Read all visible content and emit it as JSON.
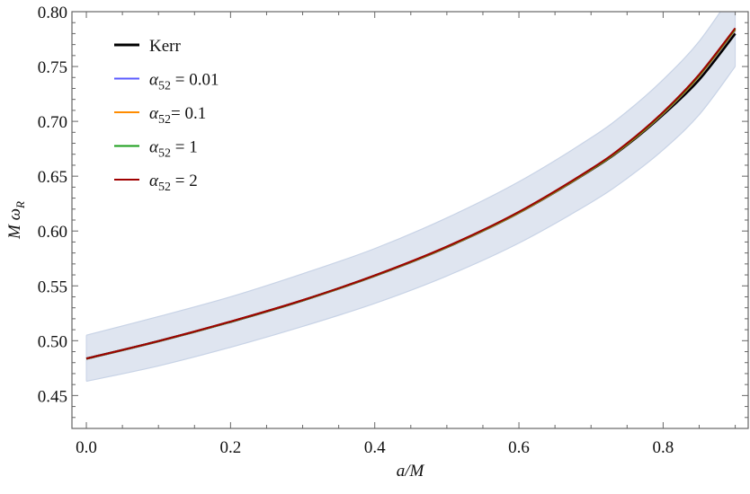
{
  "chart_data": {
    "type": "line",
    "title": "",
    "xlabel": "a/M",
    "ylabel": "M ω_R",
    "ylabel_main": "M ω",
    "ylabel_sub": "R",
    "xlim": [
      -0.02,
      0.918
    ],
    "ylim": [
      0.42,
      0.8
    ],
    "x_ticks": [
      "0.0",
      "0.2",
      "0.4",
      "0.6",
      "0.8"
    ],
    "y_ticks": [
      "0.45",
      "0.50",
      "0.55",
      "0.60",
      "0.65",
      "0.70",
      "0.75",
      "0.80"
    ],
    "grid": false,
    "legend_placement": "top-left",
    "x": [
      0.0,
      0.1,
      0.2,
      0.3,
      0.4,
      0.5,
      0.6,
      0.7,
      0.75,
      0.8,
      0.85,
      0.9
    ],
    "band": {
      "color": "#dfe5f0",
      "edge_color": "#c8d3e6",
      "upper": [
        0.505,
        0.522,
        0.54,
        0.561,
        0.584,
        0.612,
        0.645,
        0.685,
        0.709,
        0.738,
        0.773,
        0.82
      ],
      "lower": [
        0.463,
        0.477,
        0.494,
        0.513,
        0.534,
        0.559,
        0.589,
        0.626,
        0.648,
        0.674,
        0.706,
        0.75
      ]
    },
    "series": [
      {
        "name": "Kerr",
        "color": "#000000",
        "values": [
          0.4836,
          0.4995,
          0.5172,
          0.5367,
          0.5592,
          0.5853,
          0.6168,
          0.6556,
          0.6785,
          0.7061,
          0.738,
          0.78
        ]
      },
      {
        "name": "α52 = 0.01",
        "label_main": "α",
        "label_sub": "52",
        "label_rest": " = 0.01",
        "color": "#5b5bff",
        "values": [
          0.4836,
          0.4995,
          0.5172,
          0.5367,
          0.5592,
          0.5853,
          0.6168,
          0.6558,
          0.679,
          0.707,
          0.741,
          0.783
        ]
      },
      {
        "name": "α52= 0.1",
        "label_main": "α",
        "label_sub": "52",
        "label_rest": "= 0.1",
        "color": "#ff8c00",
        "values": [
          0.4836,
          0.4995,
          0.5172,
          0.5367,
          0.5592,
          0.5853,
          0.6168,
          0.6558,
          0.679,
          0.7072,
          0.7413,
          0.7835
        ]
      },
      {
        "name": "α52 = 1",
        "label_main": "α",
        "label_sub": "52",
        "label_rest": " = 1",
        "color": "#1a9e1a",
        "values": [
          0.4836,
          0.4996,
          0.5173,
          0.5368,
          0.5594,
          0.5856,
          0.6172,
          0.6562,
          0.6795,
          0.7078,
          0.742,
          0.7842
        ]
      },
      {
        "name": "α52 = 2",
        "label_main": "α",
        "label_sub": "52",
        "label_rest": " = 2",
        "color": "#a00000",
        "values": [
          0.4837,
          0.4997,
          0.5175,
          0.537,
          0.5596,
          0.5859,
          0.6176,
          0.6567,
          0.6801,
          0.7085,
          0.7428,
          0.785
        ]
      }
    ]
  }
}
